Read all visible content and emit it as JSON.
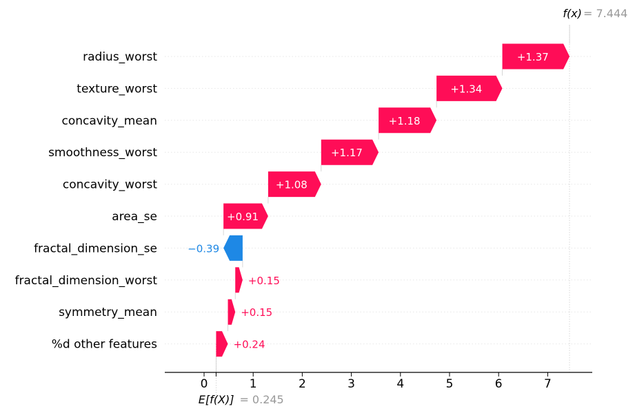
{
  "chart_data": {
    "type": "waterfall",
    "base_value": 0.245,
    "base_label": "E[f(X)]",
    "base_value_text": "= 0.245",
    "output_value": 7.444,
    "output_label": "f(x)",
    "output_value_text": "= 7.444",
    "xlim": [
      -0.8,
      7.9
    ],
    "xticks": [
      0,
      1,
      2,
      3,
      4,
      5,
      6,
      7
    ],
    "features": [
      {
        "name": "radius_worst",
        "value": 1.37,
        "label": "+1.37"
      },
      {
        "name": "texture_worst",
        "value": 1.34,
        "label": "+1.34"
      },
      {
        "name": "concavity_mean",
        "value": 1.18,
        "label": "+1.18"
      },
      {
        "name": "smoothness_worst",
        "value": 1.17,
        "label": "+1.17"
      },
      {
        "name": "concavity_worst",
        "value": 1.08,
        "label": "+1.08"
      },
      {
        "name": "area_se",
        "value": 0.91,
        "label": "+0.91"
      },
      {
        "name": "fractal_dimension_se",
        "value": -0.39,
        "label": "−0.39"
      },
      {
        "name": "fractal_dimension_worst",
        "value": 0.15,
        "label": "+0.15"
      },
      {
        "name": "symmetry_mean",
        "value": 0.15,
        "label": "+0.15"
      },
      {
        "name": "%d other features",
        "value": 0.24,
        "label": "+0.24"
      }
    ],
    "colors": {
      "positive": "#ff0d57",
      "negative": "#1e88e5",
      "muted": "#999999",
      "axis": "#000000",
      "grid": "#cccccc"
    }
  }
}
